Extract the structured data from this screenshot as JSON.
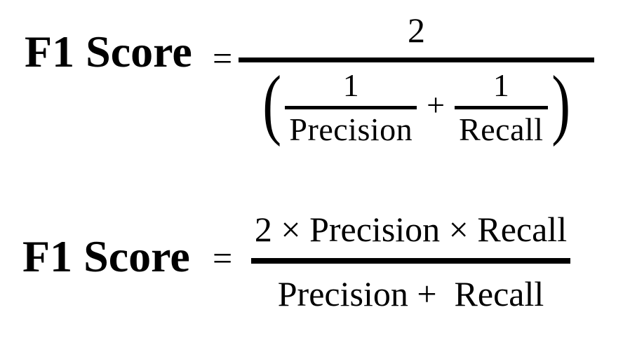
{
  "page": {
    "background_color": "#ffffff",
    "ink_color": "#000000",
    "description": "Two equivalent F1 Score formulas"
  },
  "formulas": [
    {
      "label": "F1 Score",
      "equals": "=",
      "form": "harmonic-mean",
      "numerator": "2",
      "denominator": {
        "open_paren": "(",
        "operator": "+",
        "close_paren": ")",
        "terms": [
          {
            "num": "1",
            "den": "Precision"
          },
          {
            "num": "1",
            "den": "Recall"
          }
        ]
      }
    },
    {
      "label": "F1 Score",
      "equals": "=",
      "form": "product",
      "numerator": "2 × Precision × Recall",
      "denominator": "Precision +  Recall"
    }
  ]
}
